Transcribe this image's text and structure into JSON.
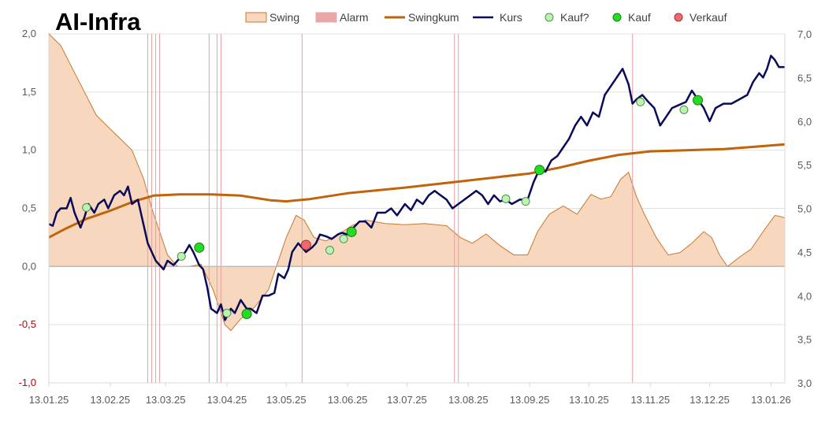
{
  "chart_data": {
    "type": "line",
    "title": "AI-Infra",
    "legend": [
      "Swing",
      "Alarm",
      "Swingkum",
      "Kurs",
      "Kauf?",
      "Kauf",
      "Verkauf"
    ],
    "legend_position": "top",
    "grid": true,
    "y_left": {
      "range": [
        -1.0,
        2.0
      ],
      "ticks": [
        "-1,0",
        "-0,5",
        "0,0",
        "0,5",
        "1,0",
        "1,5",
        "2,0"
      ],
      "tick_values": [
        -1.0,
        -0.5,
        0.0,
        0.5,
        1.0,
        1.5,
        2.0
      ]
    },
    "y_right": {
      "range": [
        3.0,
        7.0
      ],
      "ticks": [
        "3,0",
        "3,5",
        "4,0",
        "4,5",
        "5,0",
        "5,5",
        "6,0",
        "6,5",
        "7,0"
      ],
      "tick_values": [
        3.0,
        3.5,
        4.0,
        4.5,
        5.0,
        5.5,
        6.0,
        6.5,
        7.0
      ]
    },
    "x_range": [
      "2025-01-13",
      "2026-01-20"
    ],
    "x_ticks": [
      {
        "label": "13.01.25",
        "date": "2025-01-13"
      },
      {
        "label": "13.02.25",
        "date": "2025-02-13"
      },
      {
        "label": "13.03.25",
        "date": "2025-03-13"
      },
      {
        "label": "13.04.25",
        "date": "2025-04-13"
      },
      {
        "label": "13.05.25",
        "date": "2025-05-13"
      },
      {
        "label": "13.06.25",
        "date": "2025-06-13"
      },
      {
        "label": "13.07.25",
        "date": "2025-07-13"
      },
      {
        "label": "13.08.25",
        "date": "2025-08-13"
      },
      {
        "label": "13.09.25",
        "date": "2025-09-13"
      },
      {
        "label": "13.10.25",
        "date": "2025-10-13"
      },
      {
        "label": "13.11.25",
        "date": "2025-11-13"
      },
      {
        "label": "13.12.25",
        "date": "2025-12-13"
      },
      {
        "label": "13.01.26",
        "date": "2026-01-13"
      }
    ],
    "alarm_dates": [
      "2025-03-04",
      "2025-03-06",
      "2025-03-08",
      "2025-03-10",
      "2025-04-04",
      "2025-04-08",
      "2025-04-10",
      "2025-05-21",
      "2025-08-06",
      "2025-08-08",
      "2025-11-04"
    ],
    "swing": {
      "axis": "left",
      "points": [
        [
          "2025-01-13",
          2.0
        ],
        [
          "2025-01-19",
          1.9
        ],
        [
          "2025-01-25",
          1.7
        ],
        [
          "2025-01-31",
          1.5
        ],
        [
          "2025-02-06",
          1.3
        ],
        [
          "2025-02-12",
          1.2
        ],
        [
          "2025-02-18",
          1.1
        ],
        [
          "2025-02-24",
          1.0
        ],
        [
          "2025-03-02",
          0.75
        ],
        [
          "2025-03-06",
          0.5
        ],
        [
          "2025-03-10",
          0.3
        ],
        [
          "2025-03-14",
          0.1
        ],
        [
          "2025-03-19",
          0.0
        ],
        [
          "2025-03-25",
          0.0
        ],
        [
          "2025-03-31",
          0.02
        ],
        [
          "2025-04-06",
          -0.2
        ],
        [
          "2025-04-12",
          -0.5
        ],
        [
          "2025-04-15",
          -0.55
        ],
        [
          "2025-04-20",
          -0.45
        ],
        [
          "2025-04-27",
          -0.35
        ],
        [
          "2025-05-04",
          -0.2
        ],
        [
          "2025-05-08",
          0.0
        ],
        [
          "2025-05-13",
          0.25
        ],
        [
          "2025-05-18",
          0.44
        ],
        [
          "2025-05-22",
          0.4
        ],
        [
          "2025-05-27",
          0.25
        ],
        [
          "2025-06-02",
          0.22
        ],
        [
          "2025-06-08",
          0.27
        ],
        [
          "2025-06-15",
          0.35
        ],
        [
          "2025-06-22",
          0.4
        ],
        [
          "2025-07-02",
          0.37
        ],
        [
          "2025-07-12",
          0.36
        ],
        [
          "2025-07-22",
          0.37
        ],
        [
          "2025-08-02",
          0.35
        ],
        [
          "2025-08-09",
          0.25
        ],
        [
          "2025-08-15",
          0.2
        ],
        [
          "2025-08-22",
          0.28
        ],
        [
          "2025-08-29",
          0.18
        ],
        [
          "2025-09-05",
          0.1
        ],
        [
          "2025-09-12",
          0.1
        ],
        [
          "2025-09-17",
          0.3
        ],
        [
          "2025-09-23",
          0.45
        ],
        [
          "2025-09-30",
          0.52
        ],
        [
          "2025-10-07",
          0.45
        ],
        [
          "2025-10-14",
          0.62
        ],
        [
          "2025-10-19",
          0.58
        ],
        [
          "2025-10-24",
          0.6
        ],
        [
          "2025-10-29",
          0.75
        ],
        [
          "2025-11-02",
          0.81
        ],
        [
          "2025-11-06",
          0.6
        ],
        [
          "2025-11-10",
          0.45
        ],
        [
          "2025-11-16",
          0.25
        ],
        [
          "2025-11-22",
          0.1
        ],
        [
          "2025-11-28",
          0.12
        ],
        [
          "2025-12-04",
          0.2
        ],
        [
          "2025-12-10",
          0.3
        ],
        [
          "2025-12-14",
          0.25
        ],
        [
          "2025-12-18",
          0.1
        ],
        [
          "2025-12-22",
          0.0
        ],
        [
          "2025-12-28",
          0.08
        ],
        [
          "2026-01-03",
          0.15
        ],
        [
          "2026-01-09",
          0.3
        ],
        [
          "2026-01-15",
          0.44
        ],
        [
          "2026-01-20",
          0.42
        ]
      ]
    },
    "swingkum": {
      "axis": "left",
      "points": [
        [
          "2025-01-13",
          0.25
        ],
        [
          "2025-01-22",
          0.33
        ],
        [
          "2025-02-01",
          0.41
        ],
        [
          "2025-02-13",
          0.48
        ],
        [
          "2025-02-25",
          0.56
        ],
        [
          "2025-03-07",
          0.61
        ],
        [
          "2025-03-20",
          0.62
        ],
        [
          "2025-04-05",
          0.62
        ],
        [
          "2025-04-20",
          0.61
        ],
        [
          "2025-05-05",
          0.57
        ],
        [
          "2025-05-13",
          0.56
        ],
        [
          "2025-05-25",
          0.58
        ],
        [
          "2025-06-13",
          0.63
        ],
        [
          "2025-07-13",
          0.68
        ],
        [
          "2025-08-13",
          0.74
        ],
        [
          "2025-09-13",
          0.8
        ],
        [
          "2025-09-28",
          0.85
        ],
        [
          "2025-10-13",
          0.91
        ],
        [
          "2025-10-28",
          0.96
        ],
        [
          "2025-11-13",
          0.99
        ],
        [
          "2025-12-01",
          1.0
        ],
        [
          "2025-12-20",
          1.01
        ],
        [
          "2026-01-05",
          1.03
        ],
        [
          "2026-01-20",
          1.05
        ]
      ]
    },
    "kurs": {
      "axis": "right",
      "points": [
        [
          "2025-01-13",
          4.82
        ],
        [
          "2025-01-15",
          4.8
        ],
        [
          "2025-01-17",
          4.95
        ],
        [
          "2025-01-19",
          5.0
        ],
        [
          "2025-01-22",
          5.0
        ],
        [
          "2025-01-24",
          5.12
        ],
        [
          "2025-01-26",
          4.95
        ],
        [
          "2025-01-29",
          4.78
        ],
        [
          "2025-01-31",
          4.9
        ],
        [
          "2025-02-02",
          5.05
        ],
        [
          "2025-02-05",
          4.95
        ],
        [
          "2025-02-07",
          5.05
        ],
        [
          "2025-02-10",
          5.1
        ],
        [
          "2025-02-12",
          5.0
        ],
        [
          "2025-02-15",
          5.15
        ],
        [
          "2025-02-18",
          5.2
        ],
        [
          "2025-02-20",
          5.15
        ],
        [
          "2025-02-22",
          5.25
        ],
        [
          "2025-02-24",
          5.05
        ],
        [
          "2025-02-27",
          5.1
        ],
        [
          "2025-03-01",
          4.9
        ],
        [
          "2025-03-04",
          4.6
        ],
        [
          "2025-03-06",
          4.5
        ],
        [
          "2025-03-08",
          4.4
        ],
        [
          "2025-03-10",
          4.35
        ],
        [
          "2025-03-12",
          4.3
        ],
        [
          "2025-03-14",
          4.4
        ],
        [
          "2025-03-17",
          4.35
        ],
        [
          "2025-03-19",
          4.4
        ],
        [
          "2025-03-21",
          4.45
        ],
        [
          "2025-03-23",
          4.5
        ],
        [
          "2025-03-25",
          4.58
        ],
        [
          "2025-03-27",
          4.5
        ],
        [
          "2025-03-30",
          4.35
        ],
        [
          "2025-04-01",
          4.3
        ],
        [
          "2025-04-03",
          4.1
        ],
        [
          "2025-04-05",
          3.85
        ],
        [
          "2025-04-08",
          3.8
        ],
        [
          "2025-04-10",
          3.9
        ],
        [
          "2025-04-12",
          3.72
        ],
        [
          "2025-04-15",
          3.85
        ],
        [
          "2025-04-17",
          3.8
        ],
        [
          "2025-04-20",
          3.95
        ],
        [
          "2025-04-23",
          3.85
        ],
        [
          "2025-04-25",
          3.85
        ],
        [
          "2025-04-28",
          3.8
        ],
        [
          "2025-05-01",
          4.0
        ],
        [
          "2025-05-04",
          4.0
        ],
        [
          "2025-05-07",
          4.03
        ],
        [
          "2025-05-09",
          4.25
        ],
        [
          "2025-05-12",
          4.2
        ],
        [
          "2025-05-14",
          4.3
        ],
        [
          "2025-05-16",
          4.5
        ],
        [
          "2025-05-19",
          4.6
        ],
        [
          "2025-05-21",
          4.55
        ],
        [
          "2025-05-23",
          4.5
        ],
        [
          "2025-05-26",
          4.55
        ],
        [
          "2025-05-28",
          4.6
        ],
        [
          "2025-05-30",
          4.7
        ],
        [
          "2025-06-02",
          4.68
        ],
        [
          "2025-06-05",
          4.65
        ],
        [
          "2025-06-08",
          4.7
        ],
        [
          "2025-06-10",
          4.72
        ],
        [
          "2025-06-13",
          4.7
        ],
        [
          "2025-06-16",
          4.78
        ],
        [
          "2025-06-19",
          4.85
        ],
        [
          "2025-06-22",
          4.85
        ],
        [
          "2025-06-25",
          4.78
        ],
        [
          "2025-06-28",
          4.95
        ],
        [
          "2025-07-02",
          4.95
        ],
        [
          "2025-07-05",
          5.0
        ],
        [
          "2025-07-08",
          4.92
        ],
        [
          "2025-07-12",
          5.05
        ],
        [
          "2025-07-15",
          4.98
        ],
        [
          "2025-07-18",
          5.1
        ],
        [
          "2025-07-21",
          5.05
        ],
        [
          "2025-07-24",
          5.15
        ],
        [
          "2025-07-27",
          5.2
        ],
        [
          "2025-07-30",
          5.15
        ],
        [
          "2025-08-02",
          5.1
        ],
        [
          "2025-08-05",
          5.0
        ],
        [
          "2025-08-08",
          5.05
        ],
        [
          "2025-08-11",
          5.1
        ],
        [
          "2025-08-14",
          5.15
        ],
        [
          "2025-08-17",
          5.2
        ],
        [
          "2025-08-20",
          5.15
        ],
        [
          "2025-08-23",
          5.05
        ],
        [
          "2025-08-26",
          5.15
        ],
        [
          "2025-08-29",
          5.08
        ],
        [
          "2025-09-01",
          5.1
        ],
        [
          "2025-09-04",
          5.05
        ],
        [
          "2025-09-08",
          5.1
        ],
        [
          "2025-09-12",
          5.1
        ],
        [
          "2025-09-15",
          5.3
        ],
        [
          "2025-09-18",
          5.45
        ],
        [
          "2025-09-21",
          5.42
        ],
        [
          "2025-09-24",
          5.55
        ],
        [
          "2025-09-27",
          5.6
        ],
        [
          "2025-09-30",
          5.7
        ],
        [
          "2025-10-03",
          5.8
        ],
        [
          "2025-10-06",
          5.95
        ],
        [
          "2025-10-09",
          6.05
        ],
        [
          "2025-10-12",
          5.95
        ],
        [
          "2025-10-15",
          6.1
        ],
        [
          "2025-10-18",
          6.05
        ],
        [
          "2025-10-21",
          6.3
        ],
        [
          "2025-10-24",
          6.4
        ],
        [
          "2025-10-27",
          6.5
        ],
        [
          "2025-10-30",
          6.6
        ],
        [
          "2025-11-02",
          6.42
        ],
        [
          "2025-11-04",
          6.2
        ],
        [
          "2025-11-06",
          6.25
        ],
        [
          "2025-11-09",
          6.3
        ],
        [
          "2025-11-12",
          6.22
        ],
        [
          "2025-11-15",
          6.15
        ],
        [
          "2025-11-18",
          5.95
        ],
        [
          "2025-11-21",
          6.05
        ],
        [
          "2025-11-24",
          6.15
        ],
        [
          "2025-11-27",
          6.18
        ],
        [
          "2025-12-01",
          6.22
        ],
        [
          "2025-12-04",
          6.35
        ],
        [
          "2025-12-07",
          6.25
        ],
        [
          "2025-12-10",
          6.15
        ],
        [
          "2025-12-13",
          6.0
        ],
        [
          "2025-12-16",
          6.15
        ],
        [
          "2025-12-20",
          6.2
        ],
        [
          "2025-12-24",
          6.2
        ],
        [
          "2025-12-28",
          6.25
        ],
        [
          "2026-01-01",
          6.3
        ],
        [
          "2026-01-04",
          6.45
        ],
        [
          "2026-01-07",
          6.55
        ],
        [
          "2026-01-09",
          6.5
        ],
        [
          "2026-01-11",
          6.6
        ],
        [
          "2026-01-13",
          6.75
        ],
        [
          "2026-01-15",
          6.7
        ],
        [
          "2026-01-17",
          6.62
        ],
        [
          "2026-01-20",
          6.62
        ]
      ]
    },
    "kauf_fragezeichen": {
      "axis": "right",
      "points": [
        [
          "2025-02-01",
          5.01
        ],
        [
          "2025-03-21",
          4.45
        ],
        [
          "2025-04-13",
          3.8
        ],
        [
          "2025-06-04",
          4.52
        ],
        [
          "2025-06-11",
          4.65
        ],
        [
          "2025-09-01",
          5.11
        ],
        [
          "2025-09-11",
          5.08
        ],
        [
          "2025-11-08",
          6.22
        ],
        [
          "2025-11-30",
          6.13
        ]
      ]
    },
    "kauf": {
      "axis": "right",
      "points": [
        [
          "2025-03-30",
          4.55
        ],
        [
          "2025-04-23",
          3.79
        ],
        [
          "2025-06-15",
          4.73
        ],
        [
          "2025-09-18",
          5.44
        ],
        [
          "2025-12-07",
          6.24
        ]
      ]
    },
    "verkauf": {
      "axis": "right",
      "points": [
        [
          "2025-05-23",
          4.58
        ]
      ]
    }
  }
}
